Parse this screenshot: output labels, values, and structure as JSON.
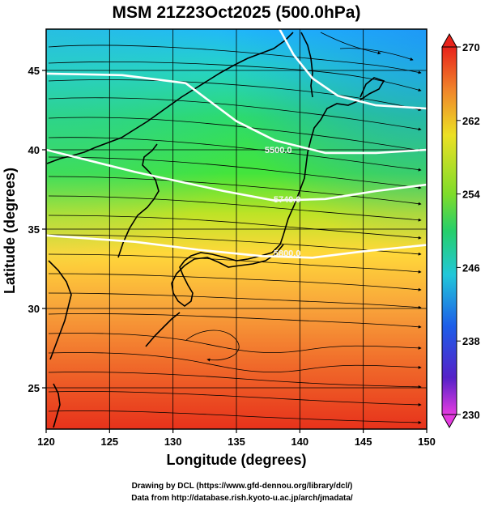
{
  "chart_data": {
    "type": "heatmap",
    "title": "MSM 21Z23Oct2025 (500.0hPa)",
    "xlabel": "Longitude (degrees)",
    "ylabel": "Latitude  (degrees)",
    "xlim": [
      120,
      150
    ],
    "ylim": [
      22.4,
      47.6
    ],
    "x_ticks": [
      120,
      125,
      130,
      135,
      140,
      145,
      150
    ],
    "y_ticks": [
      25,
      30,
      35,
      40,
      45
    ],
    "colorbar": {
      "min": 230,
      "max": 270,
      "tick_labels": [
        "270",
        "262",
        "254",
        "246",
        "238",
        "230"
      ],
      "extend": "both"
    },
    "colors": {
      "cold": "#e43be0",
      "cool": "#2a3fe0",
      "mid": "#28d26c",
      "warm": "#e6e21f",
      "hot": "#e8231b"
    },
    "contours": [
      {
        "label": "5500.0",
        "points": [
          [
            120,
            40.0
          ],
          [
            127,
            38.6
          ],
          [
            134,
            37.4
          ],
          [
            138,
            36.8
          ],
          [
            142,
            36.9
          ],
          [
            146,
            37.4
          ],
          [
            150,
            37.8
          ]
        ]
      },
      {
        "label": "5740.0",
        "points": [
          [
            120,
            34.6
          ],
          [
            127,
            34.2
          ],
          [
            132,
            33.7
          ],
          [
            137,
            33.3
          ],
          [
            141,
            33.2
          ],
          [
            145,
            33.6
          ],
          [
            150,
            34.0
          ]
        ]
      },
      {
        "label": "5800.0",
        "points": [
          [
            120,
            44.8
          ],
          [
            126,
            44.7
          ],
          [
            131,
            44.2
          ],
          [
            135,
            41.8
          ],
          [
            138,
            40.6
          ],
          [
            142,
            39.8
          ],
          [
            146,
            39.8
          ],
          [
            150,
            40.0
          ]
        ]
      },
      {
        "label": "",
        "points": [
          [
            138.4,
            47.6
          ],
          [
            139.5,
            46.0
          ],
          [
            141.0,
            44.5
          ],
          [
            143.0,
            43.4
          ],
          [
            146.0,
            42.8
          ],
          [
            150,
            42.6
          ]
        ]
      }
    ],
    "contour_label_positions": [
      {
        "label": "5500.0",
        "x": 138.3,
        "y": 40.0
      },
      {
        "label": "5740.0",
        "x": 139.0,
        "y": 36.9
      },
      {
        "label": "5800.0",
        "x": 139.0,
        "y": 33.5
      }
    ]
  },
  "credits": {
    "line1": "Drawing by DCL (https://www.gfd-dennou.org/library/dcl/)",
    "line2": "Data from http://database.rish.kyoto-u.ac.jp/arch/jmadata/"
  }
}
